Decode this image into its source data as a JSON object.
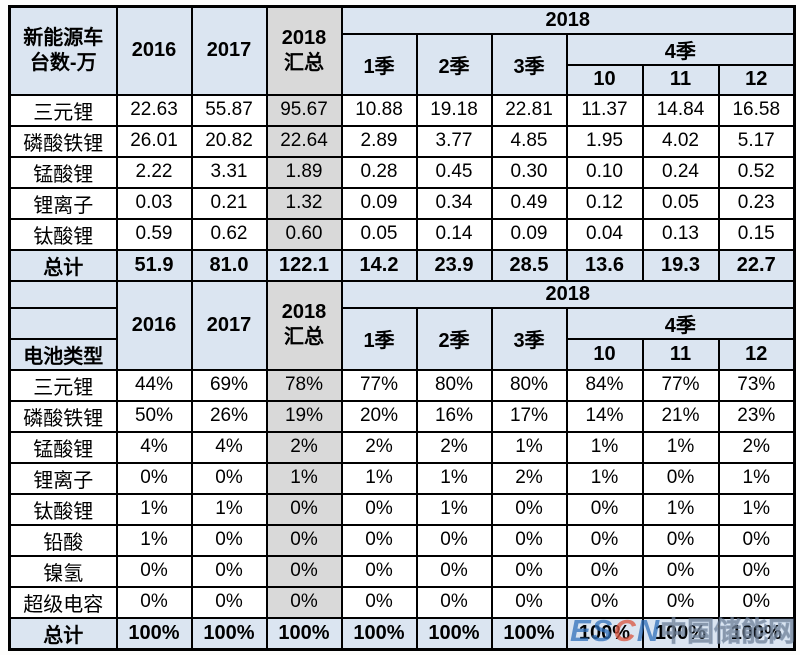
{
  "colors": {
    "header_blue": "#dbe5f1",
    "summary_gray": "#d9d9d9",
    "total_row_blue": "#dbe5f1",
    "border": "#000000",
    "watermark_blue": "#2f6fba",
    "watermark_accent": "#d9533c",
    "watermark_gray": "#8c9196"
  },
  "table1": {
    "corner": "新能源车\n台数-万",
    "header": {
      "y2016": "2016",
      "y2017": "2017",
      "y2018_total": "2018\n汇总",
      "y2018": "2018",
      "q1": "1季",
      "q2": "2季",
      "q3": "3季",
      "q4": "4季",
      "m10": "10",
      "m11": "11",
      "m12": "12"
    },
    "rows": [
      {
        "label": "三元锂",
        "values": [
          "22.63",
          "55.87",
          "95.67",
          "10.88",
          "19.18",
          "22.81",
          "11.37",
          "14.84",
          "16.58"
        ]
      },
      {
        "label": "磷酸铁锂",
        "values": [
          "26.01",
          "20.82",
          "22.64",
          "2.89",
          "3.77",
          "4.85",
          "1.95",
          "4.02",
          "5.17"
        ]
      },
      {
        "label": "锰酸锂",
        "values": [
          "2.22",
          "3.31",
          "1.89",
          "0.28",
          "0.45",
          "0.30",
          "0.10",
          "0.24",
          "0.52"
        ]
      },
      {
        "label": "锂离子",
        "values": [
          "0.03",
          "0.21",
          "1.32",
          "0.09",
          "0.34",
          "0.49",
          "0.12",
          "0.05",
          "0.23"
        ]
      },
      {
        "label": "钛酸锂",
        "values": [
          "0.59",
          "0.62",
          "0.60",
          "0.05",
          "0.14",
          "0.09",
          "0.04",
          "0.13",
          "0.15"
        ]
      }
    ],
    "total": {
      "label": "总计",
      "values": [
        "51.9",
        "81.0",
        "122.1",
        "14.2",
        "23.9",
        "28.5",
        "13.6",
        "19.3",
        "22.7"
      ]
    }
  },
  "table2": {
    "corner": "电池类型",
    "header": {
      "y2016": "2016",
      "y2017": "2017",
      "y2018_total": "2018\n汇总",
      "y2018": "2018",
      "q1": "1季",
      "q2": "2季",
      "q3": "3季",
      "q4": "4季",
      "m10": "10",
      "m11": "11",
      "m12": "12"
    },
    "rows": [
      {
        "label": "三元锂",
        "values": [
          "44%",
          "69%",
          "78%",
          "77%",
          "80%",
          "80%",
          "84%",
          "77%",
          "73%"
        ]
      },
      {
        "label": "磷酸铁锂",
        "values": [
          "50%",
          "26%",
          "19%",
          "20%",
          "16%",
          "17%",
          "14%",
          "21%",
          "23%"
        ]
      },
      {
        "label": "锰酸锂",
        "values": [
          "4%",
          "4%",
          "2%",
          "2%",
          "2%",
          "1%",
          "1%",
          "1%",
          "2%"
        ]
      },
      {
        "label": "锂离子",
        "values": [
          "0%",
          "0%",
          "1%",
          "1%",
          "1%",
          "2%",
          "1%",
          "0%",
          "1%"
        ]
      },
      {
        "label": "钛酸锂",
        "values": [
          "1%",
          "1%",
          "0%",
          "0%",
          "1%",
          "0%",
          "0%",
          "1%",
          "1%"
        ]
      },
      {
        "label": "铅酸",
        "values": [
          "1%",
          "0%",
          "0%",
          "0%",
          "0%",
          "0%",
          "0%",
          "0%",
          "0%"
        ]
      },
      {
        "label": "镍氢",
        "values": [
          "0%",
          "0%",
          "0%",
          "0%",
          "0%",
          "0%",
          "0%",
          "0%",
          "0%"
        ]
      },
      {
        "label": "超级电容",
        "values": [
          "0%",
          "0%",
          "0%",
          "0%",
          "0%",
          "0%",
          "0%",
          "0%",
          "0%"
        ]
      }
    ],
    "total": {
      "label": "总计",
      "values": [
        "100%",
        "100%",
        "100%",
        "100%",
        "100%",
        "100%",
        "100%",
        "100%",
        "100%"
      ]
    }
  },
  "watermark": {
    "part1": "ES",
    "part2": "C",
    "part3": "N",
    "cn": "中国储能网"
  }
}
